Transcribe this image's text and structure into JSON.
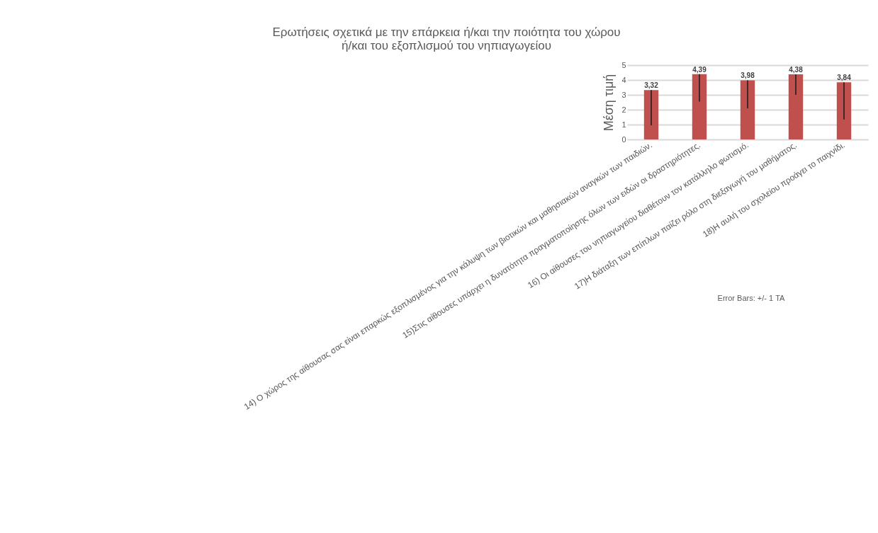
{
  "chart_data": {
    "type": "bar",
    "title": [
      "Ερωτήσεις σχετικά με την επάρκεια ή/και την ποιότητα του χώρου",
      "ή/και του εξοπλισμού του νηπιαγωγείου"
    ],
    "ylabel": "Μέση τιμή",
    "categories": [
      "14) Ο χώρος της αίθουσας σας είναι επαρκώς εξοπλισμένος για την κάλυψη των βιοτικών και μαθησιακών αναγκών των παιδιών.",
      "15)Στις αίθουσες υπάρχει η δυνατότητα πραγματοποίησης όλων των ειδών οι δραστηριότητες.",
      "16) Οι αίθουσες του νηπιαγωγείου διαθέτουν τον κατάλληλο φωτισμό.",
      "17)Η διάταξη των επίπλων παίζει ρόλο στη διεξαγωγή του μαθήματος.",
      "18)Η αυλή του σχολείου προάγει το παιχνίδι."
    ],
    "values": [
      3.32,
      4.39,
      3.98,
      4.38,
      3.84
    ],
    "value_labels": [
      "3,32",
      "4,39",
      "3,98",
      "4,38",
      "3,84"
    ],
    "errors": [
      [
        0.95,
        3.32
      ],
      [
        2.55,
        4.39
      ],
      [
        2.1,
        3.98
      ],
      [
        3.0,
        4.38
      ],
      [
        1.35,
        3.84
      ]
    ],
    "color": "#c0504d",
    "ylim": [
      0,
      5
    ],
    "yticks": [
      0,
      1,
      2,
      3,
      4,
      5
    ],
    "grid": true,
    "annotations": [
      "Error Bars: +/- 1 ΤΑ"
    ]
  }
}
